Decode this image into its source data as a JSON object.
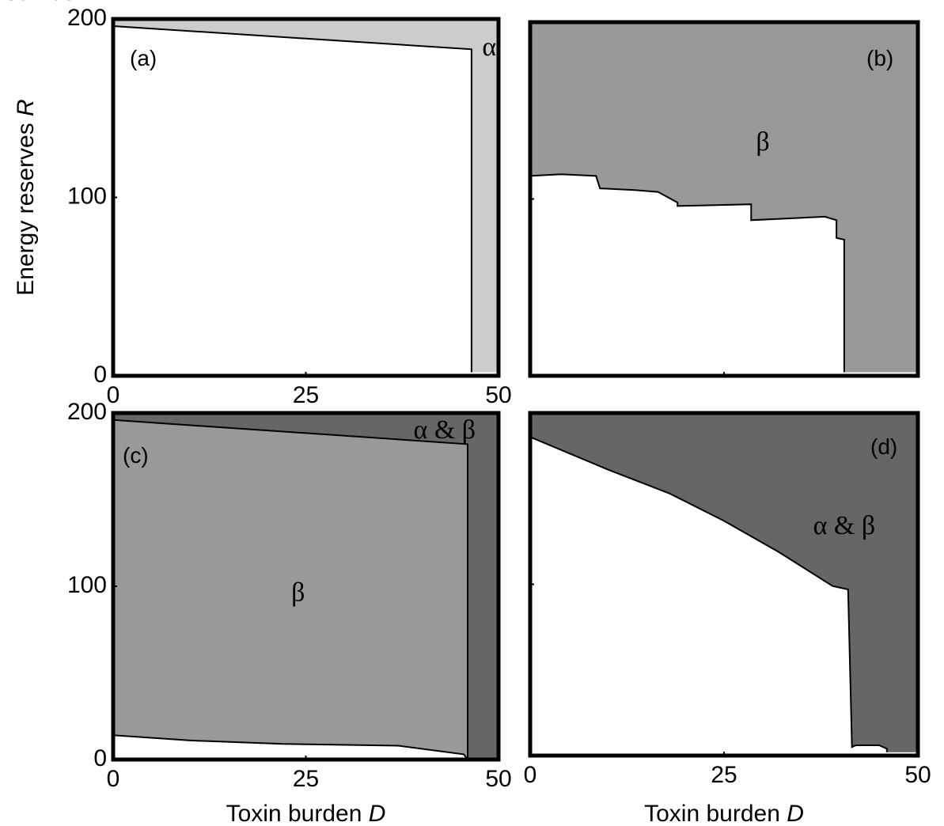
{
  "chart_data": [
    {
      "type": "heatmap",
      "panel": "(a)",
      "xlim": [
        0,
        50
      ],
      "ylim": [
        0,
        200
      ],
      "x_ticks": [
        "0",
        "25",
        "50"
      ],
      "y_ticks": [
        "0",
        "100",
        "200"
      ],
      "xlabel": "",
      "ylabel": [
        "Energy reserves ",
        "R"
      ],
      "colors": {
        "none": "#ffffff",
        "region": "#cccccc"
      },
      "regions": [
        {
          "label": "α",
          "color": "#cccccc",
          "label_at": [
            48.8,
            183
          ],
          "outline": [
            [
              0,
              200
            ],
            [
              50,
              200
            ],
            [
              50,
              2
            ],
            [
              46.5,
              2
            ],
            [
              46.5,
              183
            ],
            [
              0,
              196
            ]
          ]
        }
      ],
      "region_boundary": [
        [
          0,
          196
        ],
        [
          46.5,
          183
        ],
        [
          46.5,
          2
        ]
      ]
    },
    {
      "type": "heatmap",
      "panel": "(b)",
      "xlim": [
        0,
        50
      ],
      "ylim": [
        0,
        200
      ],
      "x_ticks": [],
      "y_ticks": [],
      "xlabel": "",
      "ylabel": "",
      "colors": {
        "none": "#ffffff",
        "region": "#999999"
      },
      "regions": [
        {
          "label": "β",
          "color": "#999999",
          "label_at": [
            30,
            131
          ],
          "outline": [
            [
              0,
              200
            ],
            [
              50,
              200
            ],
            [
              50,
              2
            ],
            [
              40.5,
              2
            ],
            [
              40.5,
              5
            ],
            [
              40.5,
              77
            ],
            [
              39.5,
              78
            ],
            [
              39.5,
              88
            ],
            [
              38,
              90
            ],
            [
              28.5,
              88
            ],
            [
              28.5,
              97
            ],
            [
              19,
              96
            ],
            [
              19,
              98
            ],
            [
              16.5,
              104
            ],
            [
              13.5,
              105
            ],
            [
              9,
              106
            ],
            [
              8.5,
              113
            ],
            [
              4,
              114
            ],
            [
              0,
              113
            ]
          ]
        }
      ],
      "region_boundary": [
        [
          0,
          113
        ],
        [
          4,
          114
        ],
        [
          8.5,
          113
        ],
        [
          9,
          106
        ],
        [
          13.5,
          105
        ],
        [
          16.5,
          104
        ],
        [
          19,
          98
        ],
        [
          19,
          96
        ],
        [
          28.5,
          97
        ],
        [
          28.5,
          88
        ],
        [
          38,
          90
        ],
        [
          39.5,
          88
        ],
        [
          39.5,
          78
        ],
        [
          40.5,
          77
        ],
        [
          40.5,
          2
        ]
      ]
    },
    {
      "type": "heatmap",
      "panel": "(c)",
      "xlim": [
        0,
        50
      ],
      "ylim": [
        0,
        200
      ],
      "x_ticks": [
        "0",
        "25",
        "50"
      ],
      "y_ticks": [
        "0",
        "100",
        "200"
      ],
      "xlabel": [
        "Toxin burden ",
        "D"
      ],
      "ylabel": [
        "Energy reserves ",
        "R"
      ],
      "colors": {
        "none": "#ffffff",
        "beta": "#999999",
        "alpha_beta": "#666666"
      },
      "regions": [
        {
          "label": "β",
          "color": "#999999",
          "label_at": [
            24,
            95
          ],
          "outline": [
            [
              0,
              196
            ],
            [
              46,
              182
            ],
            [
              46,
              0
            ],
            [
              45.5,
              3
            ],
            [
              37,
              8
            ],
            [
              22,
              9
            ],
            [
              10,
              11
            ],
            [
              0,
              14
            ]
          ]
        },
        {
          "label": "α & β",
          "color": "#666666",
          "label_at": [
            43,
            189
          ],
          "outline": [
            [
              0,
              200
            ],
            [
              50,
              200
            ],
            [
              50,
              0
            ],
            [
              46,
              0
            ],
            [
              46,
              182
            ],
            [
              0,
              196
            ]
          ]
        }
      ],
      "region_boundary": [
        [
          0,
          196
        ],
        [
          46,
          182
        ],
        [
          46,
          0
        ]
      ],
      "lower_boundary": [
        [
          0,
          14
        ],
        [
          10,
          11
        ],
        [
          22,
          9
        ],
        [
          37,
          8
        ],
        [
          45.5,
          3
        ],
        [
          46,
          0
        ]
      ]
    },
    {
      "type": "heatmap",
      "panel": "(d)",
      "xlim": [
        0,
        50
      ],
      "ylim": [
        0,
        200
      ],
      "x_ticks": [
        "0",
        "25",
        "50"
      ],
      "y_ticks": [],
      "xlabel": [
        "Toxin burden ",
        "D"
      ],
      "ylabel": "",
      "colors": {
        "none": "#ffffff",
        "region": "#666666"
      },
      "regions": [
        {
          "label": "α & β",
          "color": "#666666",
          "label_at": [
            40.5,
            133
          ],
          "outline": [
            [
              0,
              200
            ],
            [
              50,
              200
            ],
            [
              50,
              2
            ],
            [
              46,
              2
            ],
            [
              46,
              4
            ],
            [
              45,
              6
            ],
            [
              42,
              6
            ],
            [
              41.5,
              5
            ],
            [
              41,
              97
            ],
            [
              39,
              99
            ],
            [
              32,
              119
            ],
            [
              25,
              137
            ],
            [
              18,
              153
            ],
            [
              10,
              167
            ],
            [
              0,
              186
            ]
          ]
        }
      ],
      "region_boundary": [
        [
          0,
          186
        ],
        [
          10,
          167
        ],
        [
          18,
          153
        ],
        [
          25,
          137
        ],
        [
          32,
          119
        ],
        [
          39,
          99
        ],
        [
          41,
          97
        ],
        [
          41.5,
          5
        ],
        [
          42,
          6
        ],
        [
          45,
          6
        ],
        [
          46,
          4
        ],
        [
          46,
          2
        ]
      ]
    }
  ]
}
